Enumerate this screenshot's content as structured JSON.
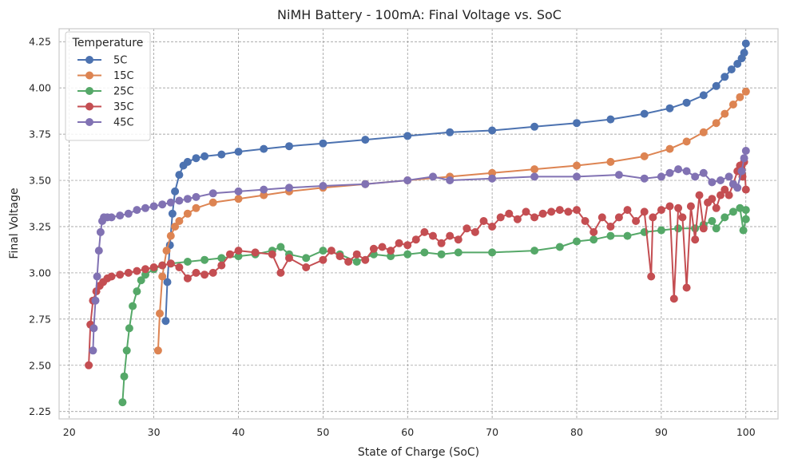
{
  "chart_data": {
    "type": "line",
    "title": "NiMH Battery - 100mA: Final Voltage vs. SoC",
    "xlabel": "State of Charge (SoC)",
    "ylabel": "Final Voltage",
    "xlim": [
      18.8,
      103.8
    ],
    "ylim": [
      2.21,
      4.32
    ],
    "xticks": [
      20,
      30,
      40,
      50,
      60,
      70,
      80,
      90,
      100
    ],
    "yticks": [
      2.25,
      2.5,
      2.75,
      3.0,
      3.25,
      3.5,
      3.75,
      4.0,
      4.25
    ],
    "ytick_labels": [
      "2.25",
      "2.50",
      "2.75",
      "3.00",
      "3.25",
      "3.50",
      "3.75",
      "4.00",
      "4.25"
    ],
    "grid": true,
    "legend": {
      "title": "Temperature",
      "position": "top-left"
    },
    "series": [
      {
        "name": "5C",
        "color": "#4c72b0",
        "x": [
          31.4,
          31.6,
          31.9,
          32.2,
          32.5,
          33,
          33.5,
          34,
          35,
          36,
          38,
          40,
          43,
          46,
          50,
          55,
          60,
          65,
          70,
          75,
          80,
          84,
          88,
          91,
          93,
          95,
          96.5,
          97.5,
          98.3,
          99,
          99.5,
          99.8,
          100
        ],
        "y": [
          2.74,
          2.95,
          3.15,
          3.32,
          3.44,
          3.53,
          3.58,
          3.6,
          3.62,
          3.63,
          3.64,
          3.655,
          3.67,
          3.685,
          3.7,
          3.72,
          3.74,
          3.76,
          3.77,
          3.79,
          3.81,
          3.83,
          3.86,
          3.89,
          3.92,
          3.96,
          4.01,
          4.06,
          4.1,
          4.13,
          4.16,
          4.19,
          4.24
        ]
      },
      {
        "name": "15C",
        "color": "#dd8452",
        "x": [
          30.5,
          30.7,
          31,
          31.5,
          32,
          32.5,
          33,
          34,
          35,
          37,
          40,
          43,
          46,
          50,
          55,
          60,
          65,
          70,
          75,
          80,
          84,
          88,
          91,
          93,
          95,
          96.5,
          97.5,
          98.5,
          99.3,
          100
        ],
        "y": [
          2.58,
          2.78,
          2.98,
          3.12,
          3.2,
          3.25,
          3.28,
          3.32,
          3.35,
          3.38,
          3.4,
          3.42,
          3.44,
          3.46,
          3.48,
          3.5,
          3.52,
          3.54,
          3.56,
          3.58,
          3.6,
          3.63,
          3.67,
          3.71,
          3.76,
          3.81,
          3.86,
          3.91,
          3.95,
          3.98
        ]
      },
      {
        "name": "25C",
        "color": "#55a868",
        "x": [
          26.3,
          26.5,
          26.8,
          27.1,
          27.5,
          28,
          28.5,
          29,
          30,
          31,
          32,
          34,
          36,
          38,
          40,
          42,
          44,
          45,
          46,
          48,
          50,
          52,
          54,
          56,
          58,
          60,
          62,
          64,
          66,
          70,
          75,
          78,
          80,
          82,
          84,
          86,
          88,
          90,
          92,
          94,
          95,
          96,
          96.5,
          97.5,
          98.5,
          99.3,
          99.7,
          100,
          100
        ],
        "y": [
          2.3,
          2.44,
          2.58,
          2.7,
          2.82,
          2.9,
          2.96,
          2.99,
          3.02,
          3.04,
          3.05,
          3.06,
          3.07,
          3.08,
          3.09,
          3.1,
          3.12,
          3.14,
          3.1,
          3.08,
          3.12,
          3.1,
          3.06,
          3.1,
          3.09,
          3.1,
          3.11,
          3.1,
          3.11,
          3.11,
          3.12,
          3.14,
          3.17,
          3.18,
          3.2,
          3.2,
          3.22,
          3.23,
          3.24,
          3.24,
          3.26,
          3.28,
          3.24,
          3.3,
          3.33,
          3.35,
          3.23,
          3.29,
          3.34
        ]
      },
      {
        "name": "35C",
        "color": "#c44e52",
        "x": [
          22.3,
          22.5,
          22.8,
          23.2,
          23.6,
          24,
          24.5,
          25,
          26,
          27,
          28,
          29,
          30,
          31,
          32,
          33,
          34,
          35,
          36,
          37,
          38,
          39,
          40,
          42,
          44,
          45,
          46,
          48,
          50,
          51,
          52,
          53,
          54,
          55,
          56,
          57,
          58,
          59,
          60,
          61,
          62,
          63,
          64,
          65,
          66,
          67,
          68,
          69,
          70,
          71,
          72,
          73,
          74,
          75,
          76,
          77,
          78,
          79,
          80,
          81,
          82,
          83,
          84,
          85,
          86,
          87,
          88,
          88.8,
          89,
          90,
          91,
          91.5,
          92,
          92.5,
          93,
          93.5,
          94,
          94.5,
          95,
          95.5,
          96,
          96.5,
          97,
          97.5,
          98,
          98.5,
          99,
          99.3,
          99.6,
          99.8,
          100
        ],
        "y": [
          2.5,
          2.72,
          2.85,
          2.9,
          2.93,
          2.95,
          2.97,
          2.98,
          2.99,
          3.0,
          3.01,
          3.02,
          3.03,
          3.04,
          3.05,
          3.03,
          2.97,
          3.0,
          2.99,
          3.0,
          3.04,
          3.1,
          3.12,
          3.11,
          3.1,
          3.0,
          3.08,
          3.03,
          3.07,
          3.12,
          3.09,
          3.06,
          3.1,
          3.07,
          3.13,
          3.14,
          3.12,
          3.16,
          3.15,
          3.18,
          3.22,
          3.2,
          3.16,
          3.2,
          3.18,
          3.24,
          3.22,
          3.28,
          3.25,
          3.3,
          3.32,
          3.29,
          3.33,
          3.3,
          3.32,
          3.33,
          3.34,
          3.33,
          3.34,
          3.28,
          3.22,
          3.3,
          3.25,
          3.3,
          3.34,
          3.28,
          3.33,
          2.98,
          3.3,
          3.34,
          3.36,
          2.86,
          3.35,
          3.3,
          2.92,
          3.36,
          3.18,
          3.42,
          3.24,
          3.38,
          3.4,
          3.35,
          3.42,
          3.45,
          3.42,
          3.48,
          3.55,
          3.58,
          3.52,
          3.6,
          3.45
        ]
      },
      {
        "name": "45C",
        "color": "#8172b3",
        "x": [
          22.8,
          22.9,
          23.1,
          23.3,
          23.5,
          23.7,
          23.9,
          24.1,
          24.5,
          25,
          26,
          27,
          28,
          29,
          30,
          31,
          32,
          33,
          34,
          35,
          37,
          40,
          43,
          46,
          50,
          55,
          60,
          63,
          65,
          70,
          75,
          80,
          85,
          88,
          90,
          91,
          92,
          93,
          94,
          95,
          96,
          97,
          98,
          98.5,
          99,
          99.5,
          99.8,
          100
        ],
        "y": [
          2.58,
          2.7,
          2.85,
          2.98,
          3.12,
          3.22,
          3.28,
          3.3,
          3.3,
          3.3,
          3.31,
          3.32,
          3.34,
          3.35,
          3.36,
          3.37,
          3.38,
          3.39,
          3.4,
          3.41,
          3.43,
          3.44,
          3.45,
          3.46,
          3.47,
          3.48,
          3.5,
          3.52,
          3.5,
          3.51,
          3.52,
          3.52,
          3.53,
          3.51,
          3.52,
          3.54,
          3.56,
          3.55,
          3.52,
          3.54,
          3.49,
          3.5,
          3.52,
          3.48,
          3.46,
          3.55,
          3.62,
          3.66
        ]
      }
    ]
  }
}
